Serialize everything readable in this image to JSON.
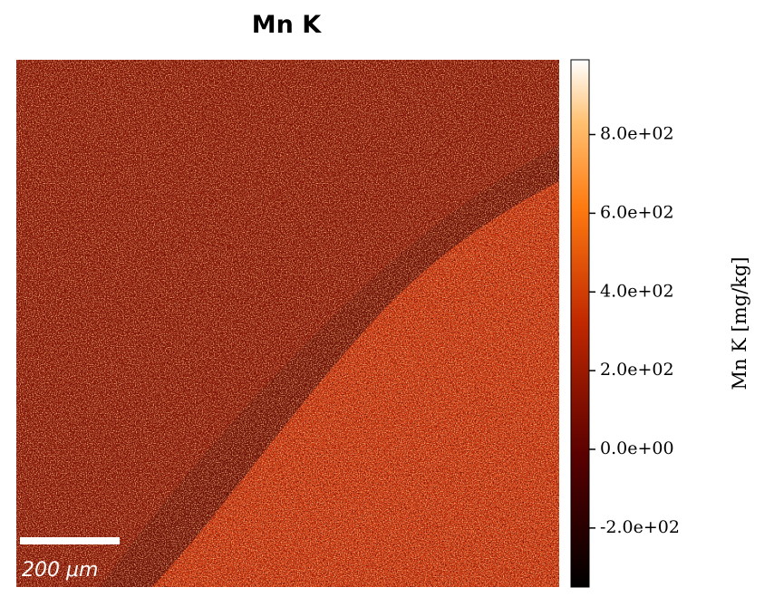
{
  "chart_data": {
    "type": "image",
    "title": "Mn K",
    "colorbar_label": "Mn K  [mg/kg]",
    "clim": [
      -350,
      990
    ],
    "cticks": [
      {
        "value": -200,
        "label": "-2.0e+02"
      },
      {
        "value": 0,
        "label": "0.0e+00"
      },
      {
        "value": 200,
        "label": "2.0e+02"
      },
      {
        "value": 400,
        "label": "4.0e+02"
      },
      {
        "value": 600,
        "label": "6.0e+02"
      },
      {
        "value": 800,
        "label": "8.0e+02"
      }
    ],
    "colormap": "afmhot",
    "scalebar": "200 μm"
  }
}
